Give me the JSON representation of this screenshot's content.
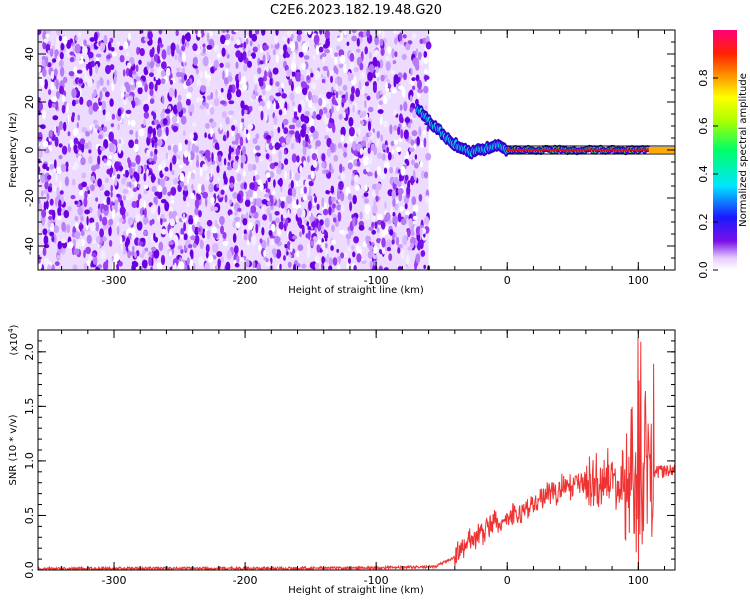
{
  "title": "C2E6.2023.182.19.48.G20",
  "colors": {
    "snr_line": "#ee3333",
    "spectrogram_noise": "#7a10e8"
  },
  "chart_data": [
    {
      "type": "heatmap",
      "xlabel": "Height of straight line (km)",
      "ylabel": "Frequency (Hz)",
      "xlim": [
        -358,
        128
      ],
      "ylim": [
        -50,
        50
      ],
      "x_ticks": [
        -300,
        -200,
        -100,
        0,
        100
      ],
      "y_ticks": [
        -40,
        -20,
        0,
        20,
        40
      ],
      "noise_region": {
        "x_range": [
          -358,
          -60
        ],
        "freq_range": [
          -50,
          50
        ]
      },
      "signal_track": {
        "x": [
          -68,
          -60,
          -52,
          -44,
          -36,
          -28,
          -20,
          -12,
          -4,
          0,
          20,
          40,
          60,
          80,
          100,
          108
        ],
        "freq": [
          17,
          12,
          8,
          4,
          1,
          -1,
          0,
          1,
          2,
          0,
          0,
          0,
          0,
          0,
          0,
          0
        ]
      },
      "colorbar": {
        "label": "Normalized spectral amplitude",
        "range": [
          0,
          1
        ],
        "ticks": [
          "0.0",
          "0.2",
          "0.4",
          "0.6",
          "0.8"
        ]
      }
    },
    {
      "type": "line",
      "xlabel": "Height of straight line (km)",
      "ylabel": "SNR (10 * v/v)",
      "y_scale_label": "(x10",
      "y_scale_exponent": "4",
      "y_scale_close": ")",
      "xlim": [
        -358,
        128
      ],
      "ylim": [
        0,
        2.2
      ],
      "x_ticks": [
        -300,
        -200,
        -100,
        0,
        100
      ],
      "y_ticks": [
        "0.0",
        "0.5",
        "1.0",
        "1.5",
        "2.0"
      ],
      "series": [
        {
          "x": [
            -358,
            -300,
            -200,
            -100,
            -55,
            -40,
            -30,
            -20,
            -10,
            0,
            10,
            20,
            30,
            40,
            50,
            60,
            70,
            80,
            85,
            90,
            95,
            100,
            103,
            106,
            110,
            115,
            120,
            128
          ],
          "y": [
            0.01,
            0.015,
            0.015,
            0.02,
            0.03,
            0.12,
            0.25,
            0.35,
            0.42,
            0.45,
            0.52,
            0.6,
            0.68,
            0.74,
            0.78,
            0.8,
            0.82,
            0.82,
            0.8,
            0.82,
            0.85,
            0.9,
            0.6,
            0.8,
            0.88,
            0.9,
            0.9,
            0.92
          ]
        }
      ]
    }
  ]
}
